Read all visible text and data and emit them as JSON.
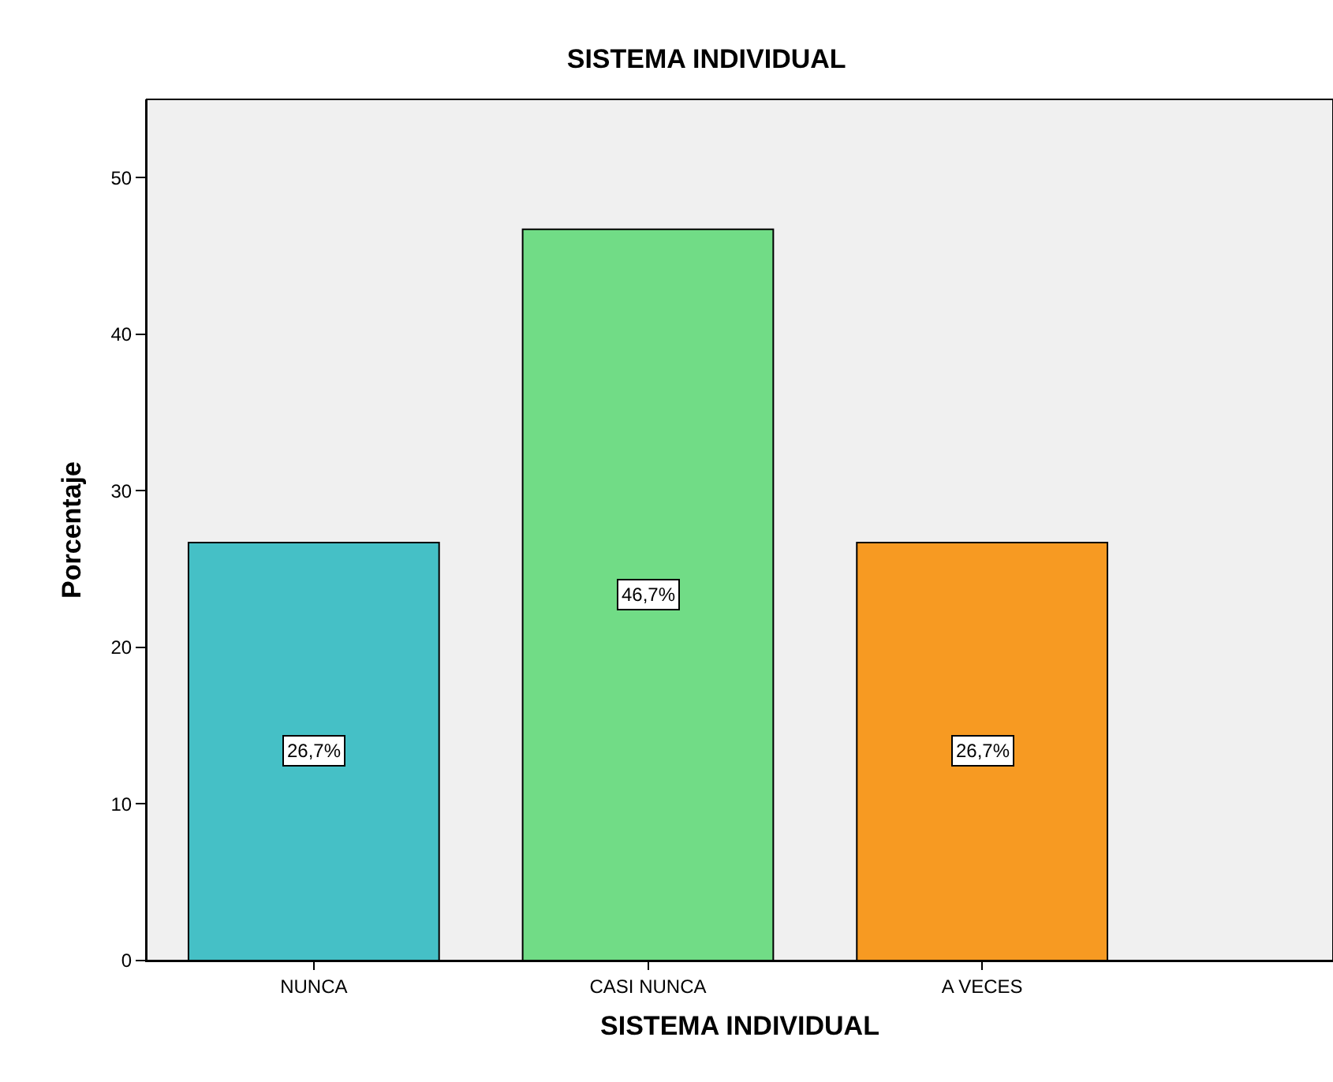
{
  "chart_data": {
    "type": "bar",
    "title": "SISTEMA INDIVIDUAL",
    "xlabel": "SISTEMA INDIVIDUAL",
    "ylabel": "Porcentaje",
    "categories": [
      "NUNCA",
      "CASI NUNCA",
      "A VECES"
    ],
    "values": [
      26.7,
      46.7,
      26.7
    ],
    "colors": [
      "#45c0c6",
      "#71dc86",
      "#f79a22"
    ],
    "value_labels": [
      "26,7%",
      "46,7%",
      "26,7%"
    ],
    "ylim": [
      0,
      55
    ],
    "yticks": [
      0,
      10,
      20,
      30,
      40,
      50
    ],
    "grid": false
  }
}
